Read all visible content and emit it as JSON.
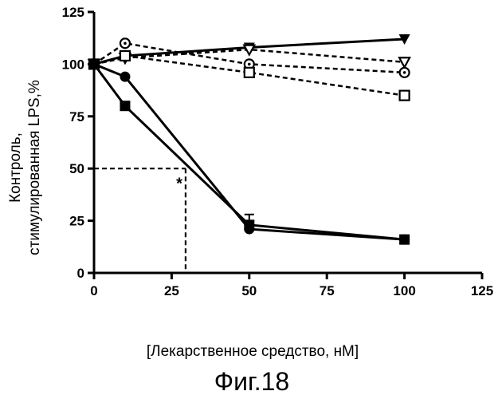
{
  "chart_data": {
    "type": "line",
    "title": "",
    "xlabel": "[Лекарственное средство, нМ]",
    "ylabel_lines": [
      "Контроль,",
      "стимулированная LPS,%"
    ],
    "caption": "Фиг.18",
    "xlim": [
      0,
      125
    ],
    "ylim": [
      0,
      125
    ],
    "xticks": [
      "0",
      "25",
      "50",
      "75",
      "100",
      "125"
    ],
    "yticks": [
      "0",
      "25",
      "50",
      "75",
      "100",
      "125"
    ],
    "grid": false,
    "legend": "none",
    "series": [
      {
        "marker": "triangle-down-filled",
        "style": "solid",
        "x": [
          0,
          10,
          50,
          100
        ],
        "y": [
          100,
          104,
          108,
          112
        ]
      },
      {
        "marker": "triangle-down-open",
        "style": "dashed",
        "x": [
          0,
          10,
          50,
          100
        ],
        "y": [
          100,
          103,
          107,
          101
        ]
      },
      {
        "marker": "circle-dot-open",
        "style": "dashed",
        "x": [
          0,
          10,
          50,
          100
        ],
        "y": [
          100,
          110,
          100,
          96
        ]
      },
      {
        "marker": "square-open",
        "style": "dashed",
        "x": [
          0,
          10,
          50,
          100
        ],
        "y": [
          100,
          104,
          96,
          85
        ]
      },
      {
        "marker": "circle-filled",
        "style": "solid",
        "x": [
          0,
          10,
          50,
          100
        ],
        "y": [
          100,
          94,
          21,
          16
        ]
      },
      {
        "marker": "square-filled",
        "style": "solid",
        "x": [
          0,
          10,
          50,
          100
        ],
        "y": [
          100,
          80,
          23,
          16
        ]
      }
    ],
    "error_bars": [
      {
        "x": 50,
        "y_low": 19,
        "y_high": 28
      }
    ],
    "annotation": {
      "text": "*",
      "x": 28,
      "y": 45
    },
    "reference": {
      "x": 29.5,
      "y": 50
    }
  }
}
